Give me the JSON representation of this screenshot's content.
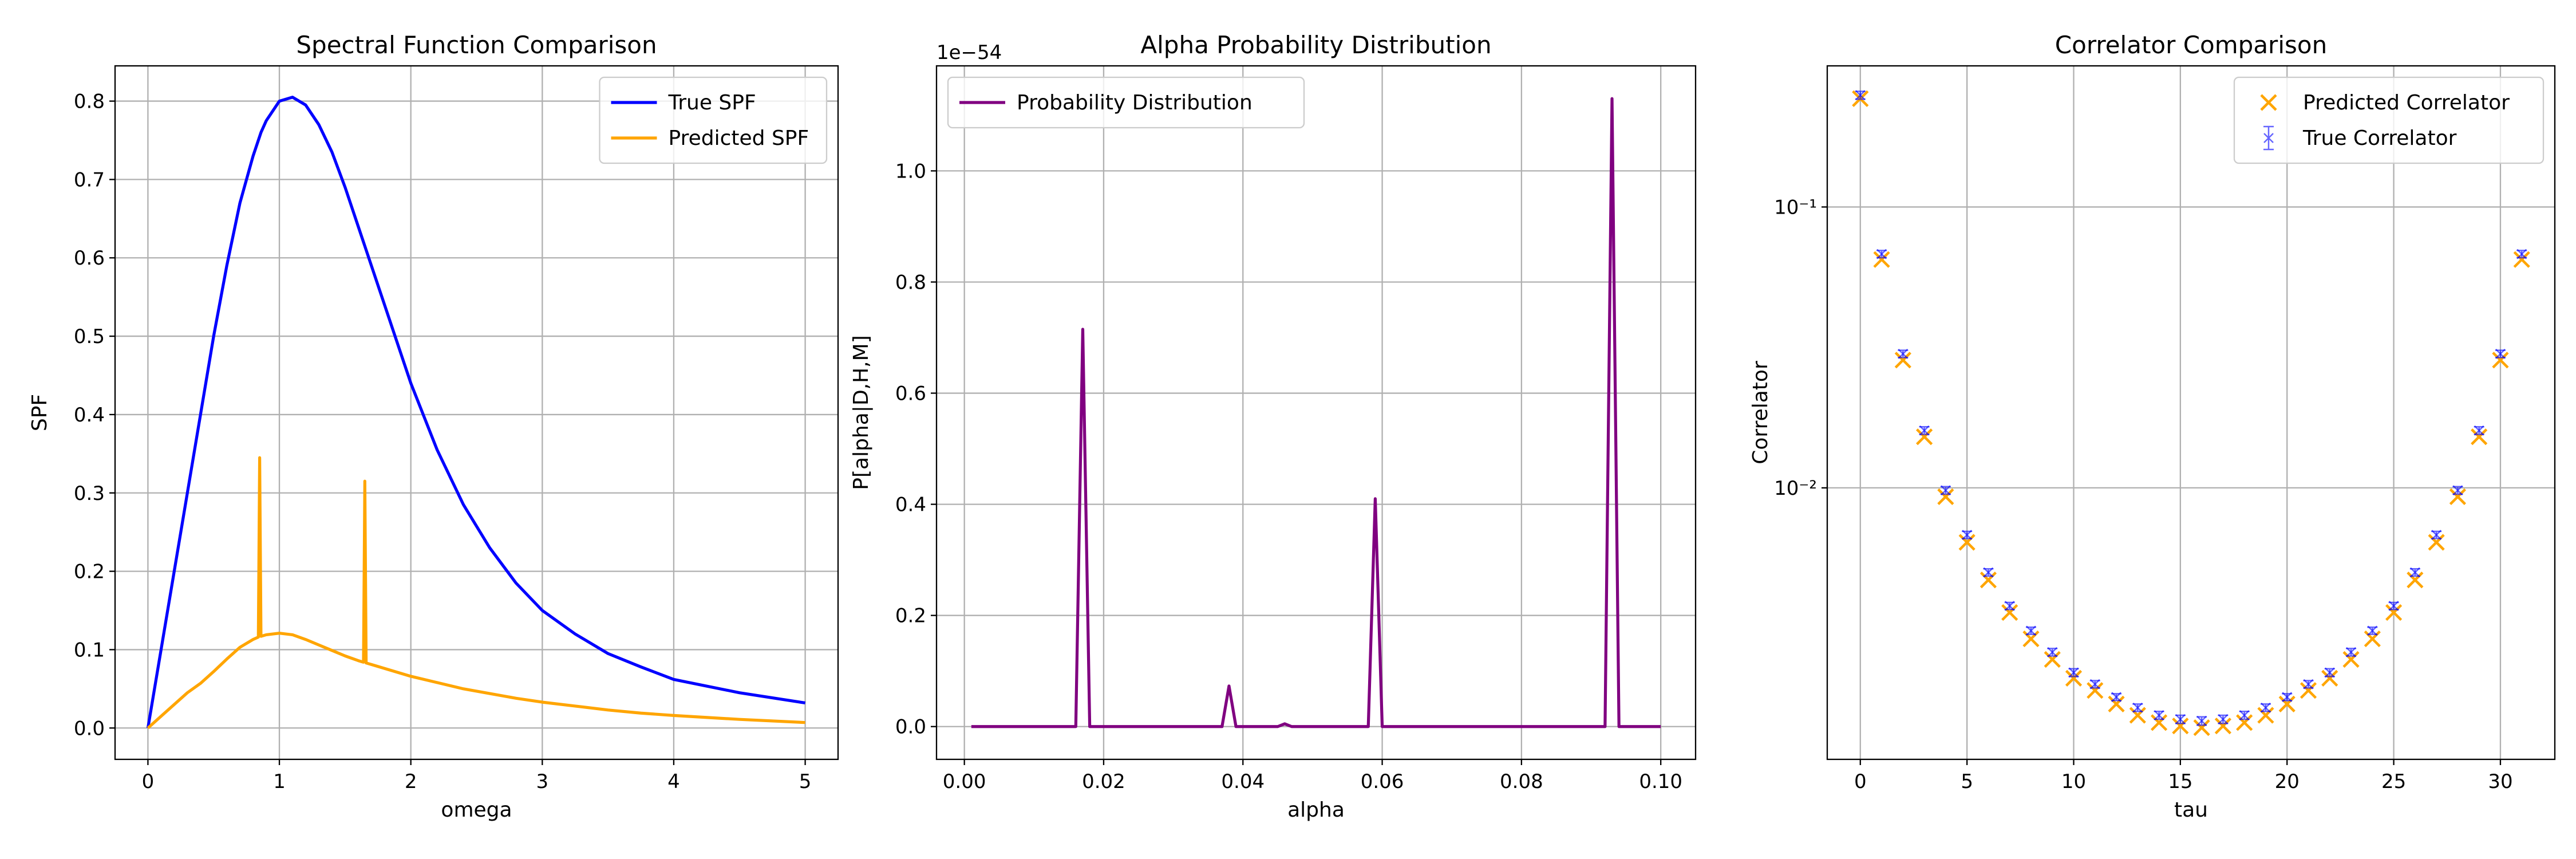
{
  "chart_data": [
    {
      "type": "line",
      "title": "Spectral Function Comparison",
      "xlabel": "omega",
      "ylabel": "SPF",
      "xlim": [
        -0.25,
        5.25
      ],
      "ylim": [
        -0.04,
        0.845
      ],
      "xticks": [
        0,
        1,
        2,
        3,
        4,
        5
      ],
      "yticks": [
        {
          "value": 0,
          "label": "0.0"
        },
        0.1,
        0.2,
        0.3,
        0.4,
        0.5,
        0.6,
        0.7,
        0.8
      ],
      "grid": true,
      "legend": "upper right",
      "x": [
        0,
        0.1,
        0.2,
        0.3,
        0.4,
        0.5,
        0.6,
        0.7,
        0.8,
        0.84,
        0.85,
        0.86,
        0.9,
        1.0,
        1.1,
        1.2,
        1.3,
        1.4,
        1.5,
        1.6,
        1.64,
        1.65,
        1.66,
        1.7,
        1.8,
        2.0,
        2.2,
        2.4,
        2.6,
        2.8,
        3.0,
        3.25,
        3.5,
        3.75,
        4.0,
        4.5,
        5.0
      ],
      "series": [
        {
          "name": "True SPF",
          "color": "#0000ff",
          "values": [
            0,
            0.1,
            0.2,
            0.3,
            0.4,
            0.5,
            0.59,
            0.67,
            0.73,
            0.75,
            0.755,
            0.76,
            0.775,
            0.8,
            0.805,
            0.795,
            0.77,
            0.735,
            0.69,
            0.64,
            0.62,
            0.615,
            0.61,
            0.59,
            0.54,
            0.44,
            0.355,
            0.285,
            0.23,
            0.185,
            0.15,
            0.12,
            0.095,
            0.078,
            0.062,
            0.045,
            0.032
          ]
        },
        {
          "name": "Predicted SPF",
          "color": "#ffa500",
          "values": [
            0,
            0.015,
            0.03,
            0.045,
            0.057,
            0.072,
            0.088,
            0.103,
            0.113,
            0.116,
            0.345,
            0.117,
            0.119,
            0.121,
            0.119,
            0.113,
            0.106,
            0.099,
            0.092,
            0.086,
            0.084,
            0.315,
            0.083,
            0.081,
            0.076,
            0.066,
            0.058,
            0.05,
            0.044,
            0.038,
            0.033,
            0.028,
            0.023,
            0.019,
            0.016,
            0.011,
            0.007
          ]
        }
      ]
    },
    {
      "type": "line",
      "title": "Alpha Probability Distribution",
      "xlabel": "alpha",
      "ylabel": "P[alpha|D,H,M]",
      "y_offset_label": "1e−54",
      "xlim": [
        -0.004,
        0.105
      ],
      "ylim": [
        -0.059,
        1.189
      ],
      "xticks": [
        {
          "value": 0,
          "label": "0.00"
        },
        {
          "value": 0.02,
          "label": "0.02"
        },
        {
          "value": 0.04,
          "label": "0.04"
        },
        {
          "value": 0.06,
          "label": "0.06"
        },
        {
          "value": 0.08,
          "label": "0.08"
        },
        {
          "value": 0.1,
          "label": "0.10"
        }
      ],
      "yticks": [
        {
          "value": 0,
          "label": "0.0"
        },
        0.2,
        0.4,
        0.6,
        0.8,
        {
          "value": 1,
          "label": "1.0"
        }
      ],
      "grid": true,
      "legend": "upper left",
      "x": [
        0.001,
        0.016,
        0.017,
        0.018,
        0.037,
        0.038,
        0.039,
        0.045,
        0.046,
        0.047,
        0.058,
        0.059,
        0.06,
        0.092,
        0.093,
        0.094,
        0.1
      ],
      "series": [
        {
          "name": "Probability Distribution",
          "color": "#800080",
          "values": [
            0,
            0,
            0.715,
            0,
            0,
            0.073,
            0,
            0,
            0.005,
            0,
            0,
            0.41,
            0,
            0,
            1.13,
            0,
            0
          ]
        }
      ]
    },
    {
      "type": "scatter",
      "title": "Correlator Comparison",
      "xlabel": "tau",
      "ylabel": "Correlator",
      "yscale": "log",
      "xlim": [
        -1.55,
        32.55
      ],
      "ylim": [
        0.00108,
        0.318
      ],
      "xticks": [
        0,
        5,
        10,
        15,
        20,
        25,
        30
      ],
      "yticks": [
        {
          "value": 0.1,
          "label": "10⁻¹"
        },
        {
          "value": 0.01,
          "label": "10⁻²"
        }
      ],
      "grid": true,
      "legend": "upper right",
      "x": [
        0,
        1,
        2,
        3,
        4,
        5,
        6,
        7,
        8,
        9,
        10,
        11,
        12,
        13,
        14,
        15,
        16,
        17,
        18,
        19,
        20,
        21,
        22,
        23,
        24,
        25,
        26,
        27,
        28,
        29,
        30,
        31
      ],
      "series": [
        {
          "name": "Predicted Correlator",
          "color": "#ffa500",
          "marker": "x",
          "values": [
            0.243,
            0.065,
            0.0285,
            0.0152,
            0.0093,
            0.0064,
            0.0047,
            0.0036,
            0.0029,
            0.00245,
            0.0021,
            0.0019,
            0.0017,
            0.00155,
            0.00146,
            0.00142,
            0.0014,
            0.00142,
            0.00146,
            0.00155,
            0.0017,
            0.0019,
            0.0021,
            0.00245,
            0.0029,
            0.0036,
            0.0047,
            0.0064,
            0.0093,
            0.0152,
            0.0285,
            0.065
          ]
        },
        {
          "name": "True Correlator",
          "color": "#0000ff",
          "marker": "errorbar",
          "values": [
            0.25,
            0.068,
            0.03,
            0.016,
            0.0098,
            0.0068,
            0.005,
            0.0038,
            0.0031,
            0.0026,
            0.0022,
            0.002,
            0.0018,
            0.00165,
            0.00155,
            0.0015,
            0.00148,
            0.0015,
            0.00155,
            0.00165,
            0.0018,
            0.002,
            0.0022,
            0.0026,
            0.0031,
            0.0038,
            0.005,
            0.0068,
            0.0098,
            0.016,
            0.03,
            0.068
          ],
          "errors": [
            0.008,
            0.002,
            0.0009,
            0.0005,
            0.0003,
            0.0002,
            0.00015,
            0.00011,
            9e-05,
            8e-05,
            7e-05,
            6e-05,
            5e-05,
            5e-05,
            5e-05,
            5e-05,
            5e-05,
            5e-05,
            5e-05,
            5e-05,
            5e-05,
            6e-05,
            7e-05,
            8e-05,
            9e-05,
            0.00011,
            0.00015,
            0.0002,
            0.0003,
            0.0005,
            0.0009,
            0.002
          ]
        }
      ]
    }
  ]
}
